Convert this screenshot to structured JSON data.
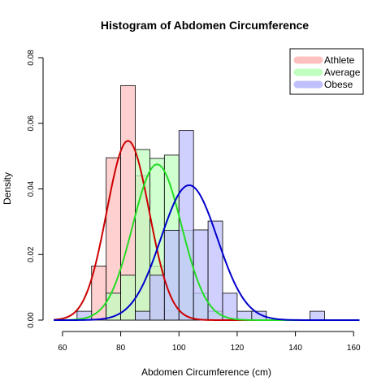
{
  "chart_data": {
    "type": "histogram",
    "title": "Histogram of Abdomen Circumference",
    "xlabel": "Abdomen Circumference (cm)",
    "ylabel": "Density",
    "xlim": [
      55,
      163
    ],
    "ylim": [
      0,
      0.08
    ],
    "x_ticks": [
      60,
      80,
      100,
      120,
      140,
      160
    ],
    "y_ticks": [
      0.0,
      0.02,
      0.04,
      0.06,
      0.08
    ],
    "y_tick_labels": [
      "0.00",
      "0.02",
      "0.04",
      "0.06",
      "0.08"
    ],
    "bin_width": 5,
    "legend_position": "top-right",
    "series": [
      {
        "name": "Athlete",
        "fill": "#ffc0c0",
        "line": "#cc0000",
        "bins": [
          {
            "x0": 70,
            "density": 0.0165
          },
          {
            "x0": 75,
            "density": 0.0495
          },
          {
            "x0": 80,
            "density": 0.0715
          },
          {
            "x0": 85,
            "density": 0.044
          },
          {
            "x0": 90,
            "density": 0.0165
          },
          {
            "x0": 95,
            "density": 0.0028
          }
        ],
        "curve": {
          "mean": 82.5,
          "sd": 7.3
        }
      },
      {
        "name": "Average",
        "fill": "#c0ffc0",
        "line": "#22dd22",
        "bins": [
          {
            "x0": 75,
            "density": 0.0082
          },
          {
            "x0": 80,
            "density": 0.0137
          },
          {
            "x0": 85,
            "density": 0.052
          },
          {
            "x0": 90,
            "density": 0.0493
          },
          {
            "x0": 95,
            "density": 0.0503
          },
          {
            "x0": 100,
            "density": 0.0274
          },
          {
            "x0": 105,
            "density": 0.0082
          },
          {
            "x0": 110,
            "density": 0.0027
          }
        ],
        "curve": {
          "mean": 92.5,
          "sd": 8.4
        }
      },
      {
        "name": "Obese",
        "fill": "#c0c0ff",
        "line": "#0000cc",
        "bins": [
          {
            "x0": 65,
            "density": 0.0027
          },
          {
            "x0": 85,
            "density": 0.0027
          },
          {
            "x0": 90,
            "density": 0.0137
          },
          {
            "x0": 95,
            "density": 0.0274
          },
          {
            "x0": 100,
            "density": 0.0578
          },
          {
            "x0": 105,
            "density": 0.0275
          },
          {
            "x0": 110,
            "density": 0.0302
          },
          {
            "x0": 115,
            "density": 0.0082
          },
          {
            "x0": 120,
            "density": 0.0027
          },
          {
            "x0": 125,
            "density": 0.0027
          },
          {
            "x0": 145,
            "density": 0.0027
          }
        ],
        "curve": {
          "mean": 103.5,
          "sd": 9.7
        }
      }
    ]
  }
}
